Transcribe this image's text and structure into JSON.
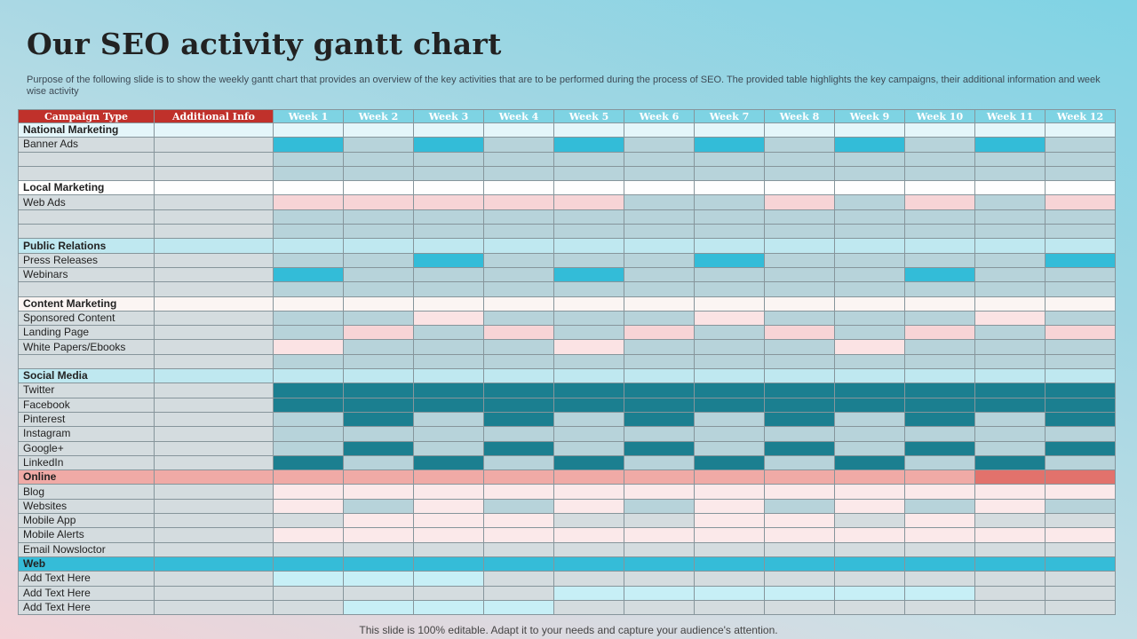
{
  "title": "Our SEO activity gantt chart",
  "description": "Purpose of the following slide is to show the weekly gantt chart that provides an overview of the key activities that are to be performed during the process of SEO. The provided table highlights the key campaigns, their additional information and week wise activity",
  "footer": "This slide is 100% editable. Adapt it to your needs and capture your audience's attention.",
  "headers": [
    "Campaign Type",
    "Additional Info",
    "Week 1",
    "Week 2",
    "Week 3",
    "Week 4",
    "Week 5",
    "Week 6",
    "Week 7",
    "Week 8",
    "Week 9",
    "Week 10",
    "Week 11",
    "Week 12"
  ],
  "rows": [
    {
      "label": "National Marketing",
      "header": true,
      "cells": [
        "lblue",
        "lblue",
        "lblue",
        "lblue",
        "lblue",
        "lblue",
        "lblue",
        "lblue",
        "lblue",
        "lblue",
        "lblue",
        "lblue"
      ],
      "label_fill": "lblue",
      "info_fill": "lblue"
    },
    {
      "label": "Banner Ads",
      "cells": [
        "cyan",
        "grey",
        "cyan",
        "grey",
        "cyan",
        "grey",
        "cyan",
        "grey",
        "cyan",
        "grey",
        "cyan",
        "grey"
      ],
      "label_fill": "greyL",
      "info_fill": "greyL"
    },
    {
      "label": "",
      "cells": [
        "grey",
        "grey",
        "grey",
        "grey",
        "grey",
        "grey",
        "grey",
        "grey",
        "grey",
        "grey",
        "grey",
        "grey"
      ],
      "label_fill": "greyL",
      "info_fill": "greyL"
    },
    {
      "label": "",
      "cells": [
        "grey",
        "grey",
        "grey",
        "grey",
        "grey",
        "grey",
        "grey",
        "grey",
        "grey",
        "grey",
        "grey",
        "grey"
      ],
      "label_fill": "greyL",
      "info_fill": "greyL"
    },
    {
      "label": "Local Marketing",
      "header": true,
      "cells": [
        "white",
        "white",
        "white",
        "white",
        "white",
        "white",
        "white",
        "white",
        "white",
        "white",
        "white",
        "white"
      ],
      "label_fill": "white",
      "info_fill": "white"
    },
    {
      "label": "Web Ads",
      "cells": [
        "pink",
        "pink",
        "pink",
        "pink",
        "pink",
        "grey",
        "grey",
        "pink",
        "grey",
        "pink",
        "grey",
        "pink"
      ],
      "label_fill": "greyL",
      "info_fill": "greyL"
    },
    {
      "label": "",
      "cells": [
        "grey",
        "grey",
        "grey",
        "grey",
        "grey",
        "grey",
        "grey",
        "grey",
        "grey",
        "grey",
        "grey",
        "grey"
      ],
      "label_fill": "greyL",
      "info_fill": "greyL"
    },
    {
      "label": "",
      "cells": [
        "grey",
        "grey",
        "grey",
        "grey",
        "grey",
        "grey",
        "grey",
        "grey",
        "grey",
        "grey",
        "grey",
        "grey"
      ],
      "label_fill": "greyL",
      "info_fill": "greyL"
    },
    {
      "label": "Public Relations",
      "header": true,
      "cells": [
        "ccyan",
        "ccyan",
        "ccyan",
        "ccyan",
        "ccyan",
        "ccyan",
        "ccyan",
        "ccyan",
        "ccyan",
        "ccyan",
        "ccyan",
        "ccyan"
      ],
      "label_fill": "ccyan",
      "info_fill": "ccyan"
    },
    {
      "label": "Press Releases",
      "cells": [
        "grey",
        "grey",
        "cyan",
        "grey",
        "grey",
        "grey",
        "cyan",
        "grey",
        "grey",
        "grey",
        "grey",
        "cyan"
      ],
      "label_fill": "greyL",
      "info_fill": "greyL"
    },
    {
      "label": "Webinars",
      "cells": [
        "cyan",
        "grey",
        "grey",
        "grey",
        "cyan",
        "grey",
        "grey",
        "grey",
        "grey",
        "cyan",
        "grey",
        "grey"
      ],
      "label_fill": "greyL",
      "info_fill": "greyL"
    },
    {
      "label": "",
      "cells": [
        "grey",
        "grey",
        "grey",
        "grey",
        "grey",
        "grey",
        "grey",
        "grey",
        "grey",
        "grey",
        "grey",
        "grey"
      ],
      "label_fill": "greyL",
      "info_fill": "greyL"
    },
    {
      "label": "Content Marketing",
      "header": true,
      "cells": [
        "cream",
        "cream",
        "cream",
        "cream",
        "cream",
        "cream",
        "cream",
        "cream",
        "cream",
        "cream",
        "cream",
        "cream"
      ],
      "label_fill": "cream",
      "info_fill": "cream"
    },
    {
      "label": "Sponsored Content",
      "cells": [
        "grey",
        "grey",
        "pinkL",
        "grey",
        "grey",
        "grey",
        "pinkL",
        "grey",
        "grey",
        "grey",
        "pinkL",
        "grey"
      ],
      "label_fill": "greyL",
      "info_fill": "greyL"
    },
    {
      "label": "Landing Page",
      "cells": [
        "grey",
        "pink",
        "grey",
        "pink",
        "grey",
        "pink",
        "grey",
        "pink",
        "grey",
        "pink",
        "grey",
        "pink"
      ],
      "label_fill": "greyL",
      "info_fill": "greyL"
    },
    {
      "label": "White Papers/Ebooks",
      "cells": [
        "pinkL",
        "grey",
        "grey",
        "grey",
        "pinkL",
        "grey",
        "grey",
        "grey",
        "pinkL",
        "grey",
        "grey",
        "grey"
      ],
      "label_fill": "greyL",
      "info_fill": "greyL"
    },
    {
      "label": "",
      "cells": [
        "grey",
        "grey",
        "grey",
        "grey",
        "grey",
        "grey",
        "grey",
        "grey",
        "grey",
        "grey",
        "grey",
        "grey"
      ],
      "label_fill": "greyL",
      "info_fill": "greyL"
    },
    {
      "label": "Social Media",
      "header": true,
      "cells": [
        "ccyan",
        "ccyan",
        "ccyan",
        "ccyan",
        "ccyan",
        "ccyan",
        "ccyan",
        "ccyan",
        "ccyan",
        "ccyan",
        "ccyan",
        "ccyan"
      ],
      "label_fill": "ccyan",
      "info_fill": "ccyan"
    },
    {
      "label": "Twitter",
      "cells": [
        "teal",
        "teal",
        "teal",
        "teal",
        "teal",
        "teal",
        "teal",
        "teal",
        "teal",
        "teal",
        "teal",
        "teal"
      ],
      "label_fill": "greyL",
      "info_fill": "greyL"
    },
    {
      "label": "Facebook",
      "cells": [
        "teal",
        "teal",
        "teal",
        "teal",
        "teal",
        "teal",
        "teal",
        "teal",
        "teal",
        "teal",
        "teal",
        "teal"
      ],
      "label_fill": "greyL",
      "info_fill": "greyL"
    },
    {
      "label": "Pinterest",
      "cells": [
        "grey",
        "teal",
        "grey",
        "teal",
        "grey",
        "teal",
        "grey",
        "teal",
        "grey",
        "teal",
        "grey",
        "teal"
      ],
      "label_fill": "greyL",
      "info_fill": "greyL"
    },
    {
      "label": "Instagram",
      "cells": [
        "grey",
        "grey",
        "grey",
        "grey",
        "grey",
        "grey",
        "grey",
        "grey",
        "grey",
        "grey",
        "grey",
        "grey"
      ],
      "label_fill": "greyL",
      "info_fill": "greyL"
    },
    {
      "label": "Google+",
      "cells": [
        "grey",
        "teal",
        "grey",
        "teal",
        "grey",
        "teal",
        "grey",
        "teal",
        "grey",
        "teal",
        "grey",
        "teal"
      ],
      "label_fill": "greyL",
      "info_fill": "greyL"
    },
    {
      "label": "LinkedIn",
      "cells": [
        "teal",
        "grey",
        "teal",
        "grey",
        "teal",
        "grey",
        "teal",
        "grey",
        "teal",
        "grey",
        "teal",
        "grey"
      ],
      "label_fill": "greyL",
      "info_fill": "greyL"
    },
    {
      "label": "Online",
      "header": true,
      "cells": [
        "salmon",
        "salmon",
        "salmon",
        "salmon",
        "salmon",
        "salmon",
        "salmon",
        "salmon",
        "salmon",
        "salmon",
        "salmonD",
        "salmonD"
      ],
      "label_fill": "salmon",
      "info_fill": "salmon"
    },
    {
      "label": "Blog",
      "cells": [
        "pinkW",
        "pinkW",
        "pinkW",
        "pinkW",
        "pinkW",
        "pinkW",
        "pinkW",
        "pinkW",
        "pinkW",
        "pinkW",
        "pinkW",
        "pinkW"
      ],
      "label_fill": "greyL",
      "info_fill": "greyL"
    },
    {
      "label": "Websites",
      "cells": [
        "pinkW",
        "grey",
        "pinkW",
        "grey",
        "pinkW",
        "grey",
        "pinkW",
        "grey",
        "pinkW",
        "grey",
        "pinkW",
        "grey"
      ],
      "label_fill": "greyL",
      "info_fill": "greyL"
    },
    {
      "label": "Mobile App",
      "cells": [
        "greyL",
        "pinkW",
        "pinkW",
        "pinkW",
        "greyL",
        "greyL",
        "pinkW",
        "pinkW",
        "greyL",
        "pinkW",
        "greyL",
        "greyL"
      ],
      "label_fill": "greyL",
      "info_fill": "greyL"
    },
    {
      "label": "Mobile Alerts",
      "cells": [
        "pinkW",
        "pinkW",
        "pinkW",
        "pinkW",
        "pinkW",
        "pinkW",
        "pinkW",
        "pinkW",
        "pinkW",
        "pinkW",
        "pinkW",
        "pinkW"
      ],
      "label_fill": "greyL",
      "info_fill": "greyL"
    },
    {
      "label": "Email Nowsloctor",
      "cells": [
        "greyL",
        "greyL",
        "greyL",
        "greyL",
        "greyL",
        "greyL",
        "greyL",
        "greyL",
        "greyL",
        "greyL",
        "greyL",
        "greyL"
      ],
      "label_fill": "greyL",
      "info_fill": "greyL"
    },
    {
      "label": "Web",
      "header": true,
      "web": true,
      "cells": [
        "webc",
        "webc",
        "webc",
        "webc",
        "webc",
        "webc",
        "webc",
        "webc",
        "webc",
        "webc",
        "webc",
        "webc"
      ],
      "label_fill": "webc",
      "info_fill": "webc"
    },
    {
      "label": "Add Text Here",
      "cells": [
        "pale",
        "pale",
        "pale",
        "greyL",
        "greyL",
        "greyL",
        "greyL",
        "greyL",
        "greyL",
        "greyL",
        "greyL",
        "greyL"
      ],
      "label_fill": "greyL",
      "info_fill": "greyL"
    },
    {
      "label": "Add Text Here",
      "cells": [
        "greyL",
        "greyL",
        "greyL",
        "greyL",
        "pale",
        "pale",
        "pale",
        "pale",
        "pale",
        "pale",
        "greyL",
        "greyL"
      ],
      "label_fill": "greyL",
      "info_fill": "greyL"
    },
    {
      "label": "Add Text Here",
      "cells": [
        "greyL",
        "pale",
        "pale",
        "pale",
        "greyL",
        "greyL",
        "greyL",
        "greyL",
        "greyL",
        "greyL",
        "greyL",
        "greyL"
      ],
      "label_fill": "greyL",
      "info_fill": "greyL"
    }
  ]
}
